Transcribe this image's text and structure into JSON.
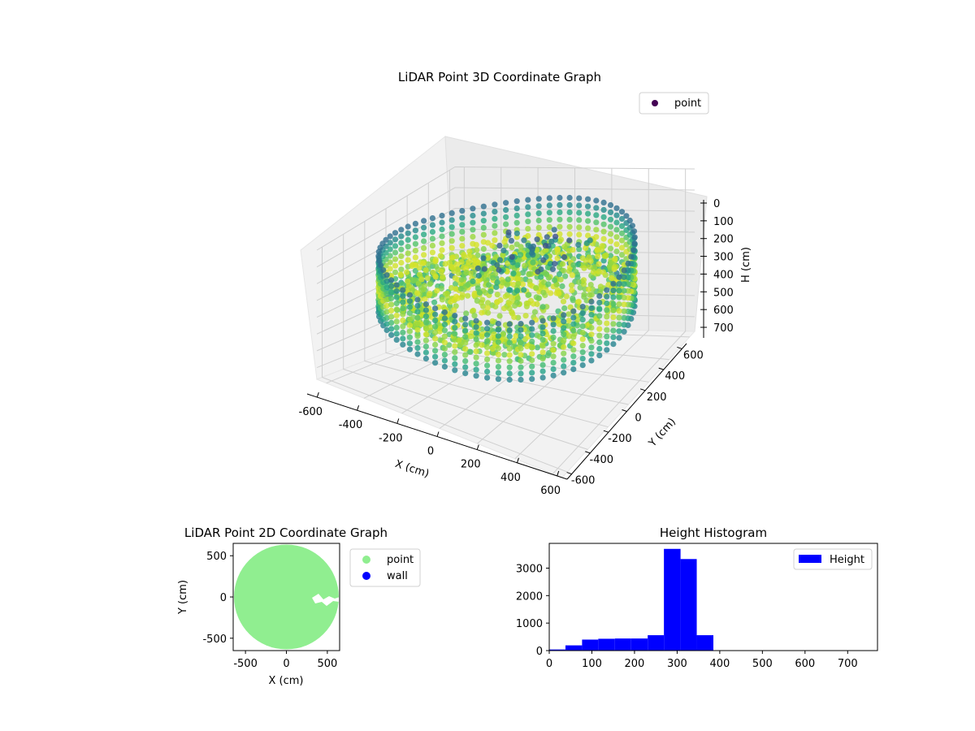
{
  "chart_data": [
    {
      "type": "scatter",
      "projection": "3d",
      "title": "LiDAR Point 3D Coordinate Graph",
      "xlabel": "X (cm)",
      "ylabel": "Y (cm)",
      "zlabel": "H (cm)",
      "xticks": [
        -600,
        -400,
        -200,
        0,
        200,
        400,
        600
      ],
      "yticks": [
        -600,
        -400,
        -200,
        0,
        200,
        400,
        600
      ],
      "zticks": [
        0,
        100,
        200,
        300,
        400,
        500,
        600,
        700
      ],
      "xlim": [
        -650,
        650
      ],
      "ylim": [
        -650,
        650
      ],
      "zlim": [
        0,
        770
      ],
      "z_axis_inverted": true,
      "colormap": "viridis",
      "grid": true,
      "legend": {
        "position": "top-right",
        "entries": [
          {
            "label": "point",
            "color": "#440154"
          }
        ]
      },
      "series": [
        {
          "name": "point"
        }
      ]
    },
    {
      "type": "scatter",
      "title": "LiDAR Point 2D Coordinate Graph",
      "xlabel": "X (cm)",
      "ylabel": "Y (cm)",
      "xticks": [
        -500,
        0,
        500
      ],
      "yticks": [
        -500,
        0,
        500
      ],
      "xlim": [
        -650,
        650
      ],
      "ylim": [
        -650,
        650
      ],
      "legend": {
        "position": "outside-right",
        "entries": [
          {
            "label": "point",
            "color": "#90ee90"
          },
          {
            "label": "wall",
            "color": "#0000ff"
          }
        ]
      },
      "series": [
        {
          "name": "point",
          "color": "#90ee90",
          "shape": "disc",
          "radius": 640
        },
        {
          "name": "wall",
          "color": "#0000ff"
        }
      ]
    },
    {
      "type": "bar",
      "subtype": "histogram",
      "title": "Height Histogram",
      "xticks": [
        0,
        100,
        200,
        300,
        400,
        500,
        600,
        700
      ],
      "yticks": [
        0,
        1000,
        2000,
        3000
      ],
      "xlim": [
        0,
        770
      ],
      "ylim": [
        0,
        3900
      ],
      "color": "#0000ff",
      "legend": {
        "position": "top-right",
        "entries": [
          {
            "label": "Height",
            "color": "#0000ff"
          }
        ]
      },
      "bins": [
        {
          "x0": 0,
          "x1": 38,
          "value": 40
        },
        {
          "x0": 38,
          "x1": 77,
          "value": 190
        },
        {
          "x0": 77,
          "x1": 115,
          "value": 400
        },
        {
          "x0": 115,
          "x1": 154,
          "value": 430
        },
        {
          "x0": 154,
          "x1": 192,
          "value": 440
        },
        {
          "x0": 192,
          "x1": 231,
          "value": 440
        },
        {
          "x0": 231,
          "x1": 269,
          "value": 560
        },
        {
          "x0": 269,
          "x1": 308,
          "value": 3700
        },
        {
          "x0": 308,
          "x1": 346,
          "value": 3330
        },
        {
          "x0": 346,
          "x1": 385,
          "value": 560
        },
        {
          "x0": 385,
          "x1": 423,
          "value": 0
        },
        {
          "x0": 423,
          "x1": 462,
          "value": 0
        },
        {
          "x0": 462,
          "x1": 500,
          "value": 0
        },
        {
          "x0": 500,
          "x1": 539,
          "value": 0
        },
        {
          "x0": 539,
          "x1": 577,
          "value": 0
        },
        {
          "x0": 577,
          "x1": 616,
          "value": 0
        },
        {
          "x0": 616,
          "x1": 654,
          "value": 0
        },
        {
          "x0": 654,
          "x1": 693,
          "value": 0
        },
        {
          "x0": 693,
          "x1": 731,
          "value": 0
        },
        {
          "x0": 731,
          "x1": 770,
          "value": 0
        }
      ]
    }
  ]
}
